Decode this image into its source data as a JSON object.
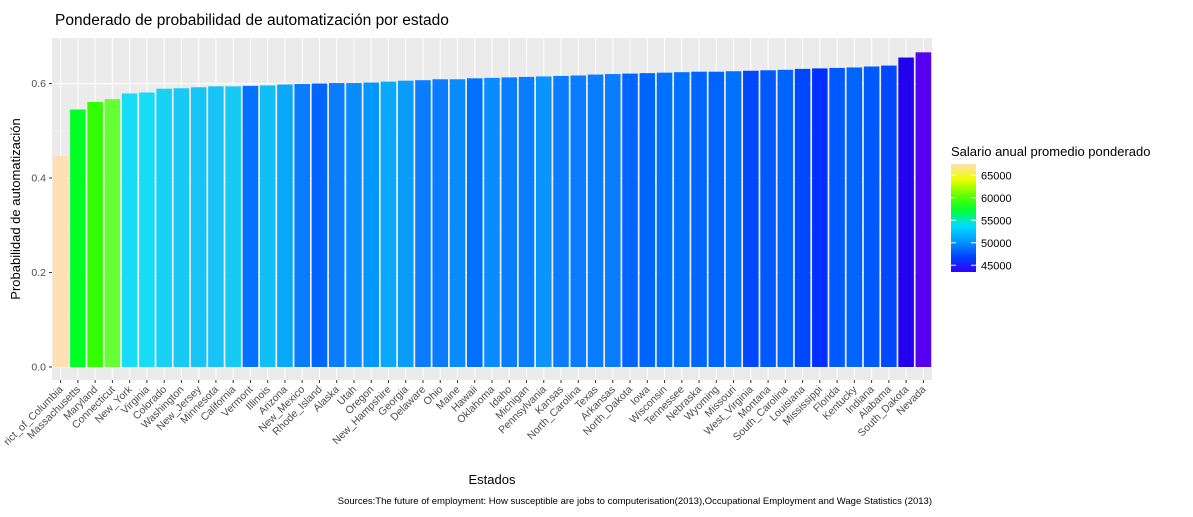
{
  "chart_data": {
    "type": "bar",
    "title": "Ponderado de probabilidad de automatización por estado",
    "xlabel": "Estados",
    "ylabel": "Probabilidad de automatización",
    "caption": "Sources:The future of employment: How susceptible are jobs to computerisation(2013),Occupational Employment and Wage Statistics (2013)",
    "ylim": [
      0,
      0.69
    ],
    "yticks": [
      0.0,
      0.2,
      0.4,
      0.6
    ],
    "ytick_labels": [
      "0.0",
      "0.2",
      "0.4",
      "0.6"
    ],
    "grid": true,
    "categories": [
      "District_of_Columbia",
      "Massachusetts",
      "Maryland",
      "Connecticut",
      "New_York",
      "Virginia",
      "Colorado",
      "Washington",
      "New_Jersey",
      "Minnesota",
      "California",
      "Vermont",
      "Illinois",
      "Arizona",
      "New_Mexico",
      "Rhode_Island",
      "Alaska",
      "Utah",
      "Oregon",
      "New_Hampshire",
      "Georgia",
      "Delaware",
      "Ohio",
      "Maine",
      "Hawaii",
      "Oklahoma",
      "Idaho",
      "Michigan",
      "Pennsylvania",
      "Kansas",
      "North_Carolina",
      "Texas",
      "Arkansas",
      "North_Dakota",
      "Iowa",
      "Wisconsin",
      "Tennessee",
      "Nebraska",
      "Wyoming",
      "Missouri",
      "West_Virginia",
      "Montana",
      "South_Carolina",
      "Louisiana",
      "Mississippi",
      "Florida",
      "Kentucky",
      "Indiana",
      "Alabama",
      "South_Dakota",
      "Nevada"
    ],
    "category_labels": [
      "rict_of_Columbia",
      "Massachusetts",
      "Maryland",
      "Connecticut",
      "New_York",
      "Virginia",
      "Colorado",
      "Washington",
      "New_Jersey",
      "Minnesota",
      "California",
      "Vermont",
      "Illinois",
      "Arizona",
      "New_Mexico",
      "Rhode_Island",
      "Alaska",
      "Utah",
      "Oregon",
      "New_Hampshire",
      "Georgia",
      "Delaware",
      "Ohio",
      "Maine",
      "Hawaii",
      "Oklahoma",
      "Idaho",
      "Michigan",
      "Pennsylvania",
      "Kansas",
      "North_Carolina",
      "Texas",
      "Arkansas",
      "North_Dakota",
      "Iowa",
      "Wisconsin",
      "Tennessee",
      "Nebraska",
      "Wyoming",
      "Missouri",
      "West_Virginia",
      "Montana",
      "South_Carolina",
      "Louisiana",
      "Mississippi",
      "Florida",
      "Kentucky",
      "Indiana",
      "Alabama",
      "South_Dakota",
      "Nevada"
    ],
    "values": [
      0.447,
      0.545,
      0.561,
      0.567,
      0.579,
      0.581,
      0.589,
      0.59,
      0.592,
      0.594,
      0.594,
      0.595,
      0.596,
      0.598,
      0.599,
      0.6,
      0.601,
      0.601,
      0.602,
      0.604,
      0.606,
      0.607,
      0.609,
      0.609,
      0.611,
      0.612,
      0.613,
      0.614,
      0.615,
      0.616,
      0.617,
      0.619,
      0.62,
      0.621,
      0.622,
      0.623,
      0.624,
      0.625,
      0.625,
      0.626,
      0.627,
      0.628,
      0.629,
      0.631,
      0.632,
      0.633,
      0.634,
      0.636,
      0.638,
      0.655,
      0.666
    ],
    "bar_colors": [
      "#ffe0b3",
      "#00ff22",
      "#33ff00",
      "#66ff33",
      "#16ddf5",
      "#16ddf5",
      "#18d2f5",
      "#18c9f5",
      "#18c3f5",
      "#18c3f5",
      "#18c9f5",
      "#0072ff",
      "#11bff7",
      "#0aa8f8",
      "#0a7cff",
      "#0064ff",
      "#0a7cff",
      "#0a8cff",
      "#0098ff",
      "#0aa8f8",
      "#0a9cfa",
      "#0a7cff",
      "#0a7cff",
      "#0a8cff",
      "#0070ff",
      "#0a8cff",
      "#0a7cff",
      "#0a7cff",
      "#0a94fc",
      "#0a7cff",
      "#0a7cff",
      "#0a7cff",
      "#0a7cff",
      "#0064ff",
      "#0064ff",
      "#0070ff",
      "#0070ff",
      "#0064ff",
      "#0064ff",
      "#0070ff",
      "#0048ff",
      "#0058ff",
      "#0064ff",
      "#0048ff",
      "#0030ff",
      "#0058ff",
      "#0064ff",
      "#0058ff",
      "#0048ff",
      "#2200ee",
      "#5500f0"
    ],
    "legend": {
      "title": "Salario anual promedio ponderado",
      "labels": [
        "65000",
        "60000",
        "55000",
        "50000",
        "45000"
      ],
      "values": [
        65000,
        60000,
        55000,
        50000,
        45000
      ],
      "range": [
        43500,
        67500
      ],
      "gradient_colors": [
        "#3300ff",
        "#0044ff",
        "#0099ff",
        "#00ddff",
        "#00ff33",
        "#66ff00",
        "#eeff00",
        "#ffe0b3"
      ],
      "position": "right"
    }
  }
}
